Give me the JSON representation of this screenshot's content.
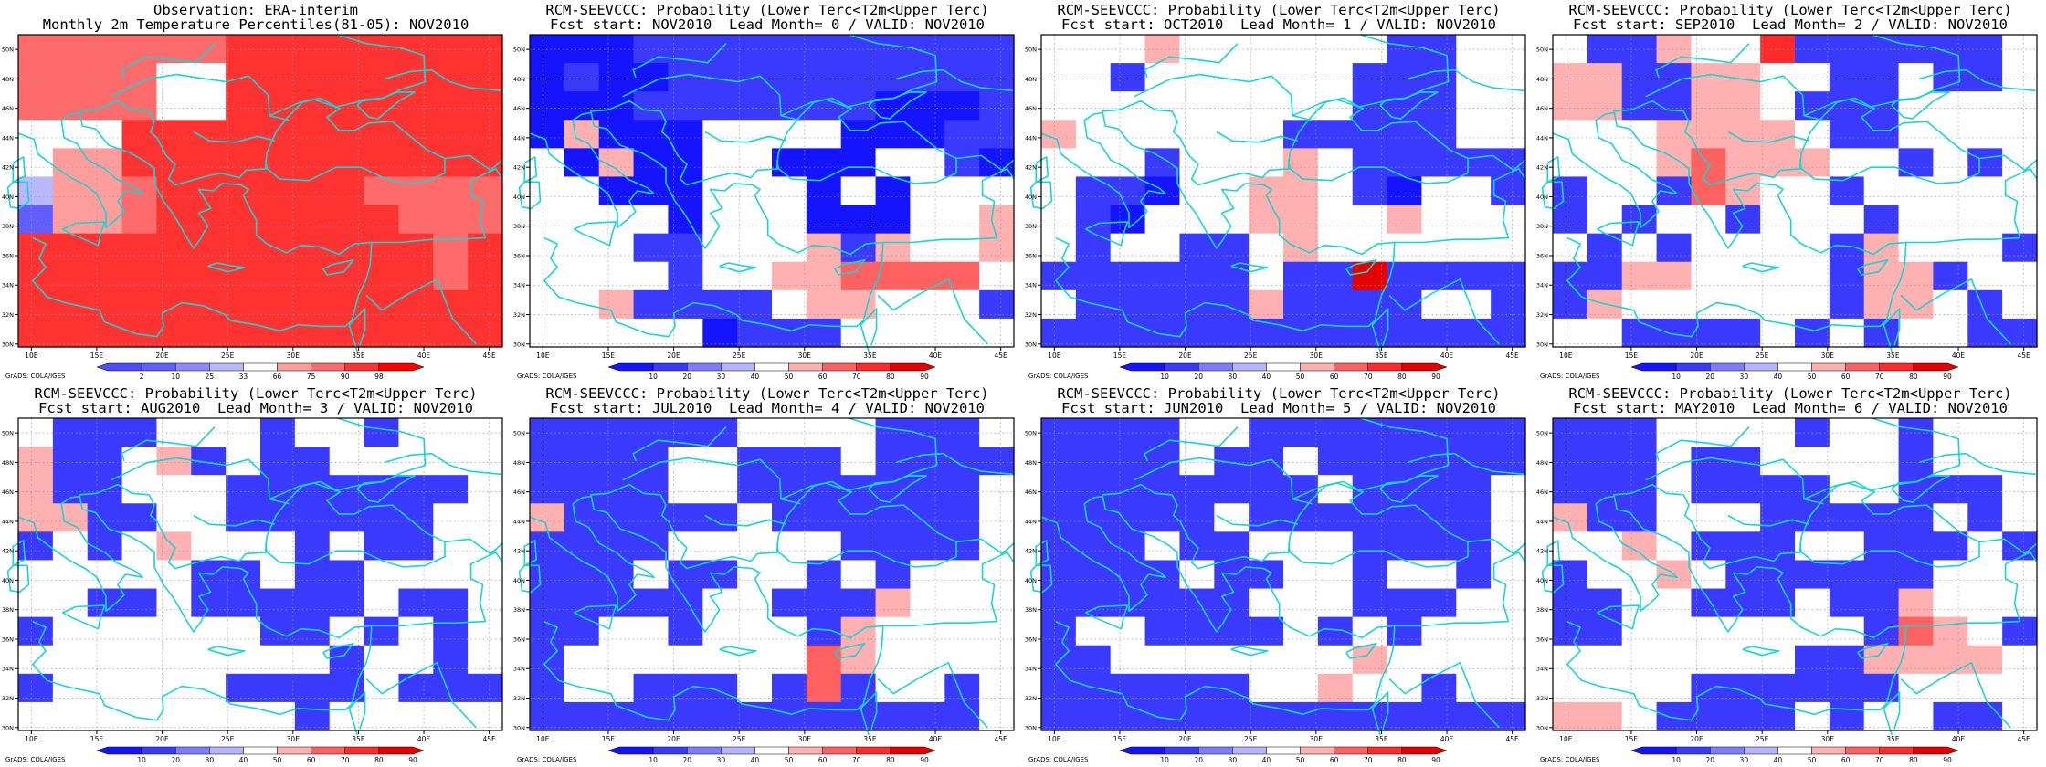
{
  "map": {
    "lon_ticks": [
      "10E",
      "15E",
      "20E",
      "25E",
      "30E",
      "35E",
      "40E",
      "45E"
    ],
    "lat_ticks": [
      "30N",
      "32N",
      "34N",
      "36N",
      "38N",
      "40N",
      "42N",
      "44N",
      "46N",
      "48N",
      "50N"
    ],
    "grads_credit": "GrADS: COLA/IGES"
  },
  "colors": {
    "obs": [
      "#4d4dff",
      "#5f5fff",
      "#8a8aff",
      "#b8b8ff",
      "#ffffff",
      "#ff9c9c",
      "#ff6a6a",
      "#ff3232",
      "#ff0000"
    ],
    "fcst": [
      "#1414ff",
      "#3a3aff",
      "#7c7cff",
      "#b4b4ff",
      "#ffffff",
      "#ffb0b0",
      "#ff6060",
      "#ff2a2a",
      "#e60000"
    ],
    "coast": "#19d4d4"
  },
  "panels": [
    {
      "id": "obs",
      "title_line1": "Observation: ERA-interim",
      "title_line2": "Monthly 2m Temperature Percentiles(81-05): NOV2010",
      "colorbar_labels": [
        "2",
        "10",
        "25",
        "33",
        "66",
        "75",
        "90",
        "98"
      ],
      "palette": "obs",
      "grid": [
        "66666677777777",
        "66664477777777",
        "66664477777777",
        "44477777777777",
        "45577777777777",
        "35567777776666",
        "15567777777666",
        "77777777777767",
        "77777777777767",
        "77777777777777",
        "77777777777777"
      ]
    },
    {
      "id": "lead0",
      "title_line1": "RCM-SEEVCCC: Probability (Lower Terc<T2m<Upper Terc)",
      "title_line2": "Fcst start: NOV2010  Lead Month= 0 / VALID: NOV2010",
      "colorbar_labels": [
        "10",
        "20",
        "30",
        "40",
        "50",
        "60",
        "70",
        "80",
        "90"
      ],
      "palette": "fcst",
      "grid": [
        "00011111111111",
        "01001111111111",
        "00011111110001",
        "05000444400011",
        "40500440004410",
        "44000444040444",
        "44440444000445",
        "44411444515445",
        "44441445566664",
        "44511114554441",
        "44444011144444"
      ]
    },
    {
      "id": "lead1",
      "title_line1": "RCM-SEEVCCC: Probability (Lower Terc<T2m<Upper Terc)",
      "title_line2": "Fcst start: OCT2010  Lead Month= 1 / VALID: NOV2010",
      "colorbar_labels": [
        "10",
        "20",
        "30",
        "40",
        "50",
        "60",
        "70",
        "80",
        "90"
      ],
      "palette": "fcst",
      "grid": [
        "44454444441144",
        "44144444411144",
        "44444444411144",
        "54444441111144",
        "44414445411111",
        "41104455410441",
        "41044455445444",
        "41441145444444",
        "11111141181111",
        "41111151111441",
        "11111111111111"
      ]
    },
    {
      "id": "lead2",
      "title_line1": "RCM-SEEVCCC: Probability (Lower Terc<T2m<Upper Terc)",
      "title_line2": "Fcst start: SEP2010  Lead Month= 2 / VALID: NOV2010",
      "colorbar_labels": [
        "10",
        "20",
        "30",
        "40",
        "50",
        "60",
        "70",
        "80",
        "90"
      ],
      "palette": "fcst",
      "grid": [
        "41154471111114",
        "55115544114114",
        "55115541114444",
        "44455554114444",
        "44456555441414",
        "14416544144444",
        "14144144414444",
        "41414444154441",
        "11554444155144",
        "15444444155414",
        "44111141414411"
      ]
    },
    {
      "id": "lead3",
      "title_line1": "RCM-SEEVCCC: Probability (Lower Terc<T2m<Upper Terc)",
      "title_line2": "Fcst start: AUG2010  Lead Month= 3 / VALID: NOV2010",
      "colorbar_labels": [
        "10",
        "20",
        "30",
        "40",
        "50",
        "60",
        "70",
        "80",
        "90"
      ],
      "palette": "fcst",
      "grid": [
        "41114441441444",
        "51145141144444",
        "51144411111114",
        "55114411111144",
        "14145444141144",
        "44444114114444",
        "44114111114114",
        "14444441141414",
        "44444444414414",
        "14444411114111",
        "44444444144444"
      ]
    },
    {
      "id": "lead4",
      "title_line1": "RCM-SEEVCCC: Probability (Lower Terc<T2m<Upper Terc)",
      "title_line2": "Fcst start: JUL2010  Lead Month= 4 / VALID: NOV2010",
      "colorbar_labels": [
        "10",
        "20",
        "30",
        "40",
        "50",
        "60",
        "70",
        "80",
        "90"
      ],
      "palette": "fcst",
      "grid": [
        "11111144441114",
        "11114411141111",
        "11114411111114",
        "51111141111114",
        "11114444411114",
        "11141144141444",
        "11111441115444",
        "11441444154444",
        "14444444654444",
        "14411141614414",
        "11111111111114"
      ]
    },
    {
      "id": "lead5",
      "title_line1": "RCM-SEEVCCC: Probability (Lower Terc<T2m<Upper Terc)",
      "title_line2": "Fcst start: JUN2010  Lead Month= 5 / VALID: NOV2010",
      "colorbar_labels": [
        "10",
        "20",
        "30",
        "40",
        "50",
        "60",
        "70",
        "80",
        "90"
      ],
      "palette": "fcst",
      "grid": [
        "11114411111111",
        "11114114111111",
        "11111111411114",
        "11111411111114",
        "11141144411114",
        "11114114414414",
        "11111144411144",
        "14411114141444",
        "11444444454444",
        "11111144544144",
        "11111111111111"
      ]
    },
    {
      "id": "lead6",
      "title_line1": "RCM-SEEVCCC: Probability (Lower Terc<T2m<Upper Terc)",
      "title_line2": "Fcst start: MAY2010  Lead Month= 6 / VALID: NOV2010",
      "colorbar_labels": [
        "10",
        "20",
        "30",
        "40",
        "50",
        "60",
        "70",
        "80",
        "90"
      ],
      "palette": "fcst",
      "grid": [
        "11144441441444",
        "11141144441444",
        "11141111441114",
        "51144411111414",
        "44541114411141",
        "14454111111444",
        "11441114115444",
        "11444444416541",
        "44444441155554",
        "44441111114444",
        "55411114144114"
      ]
    }
  ]
}
